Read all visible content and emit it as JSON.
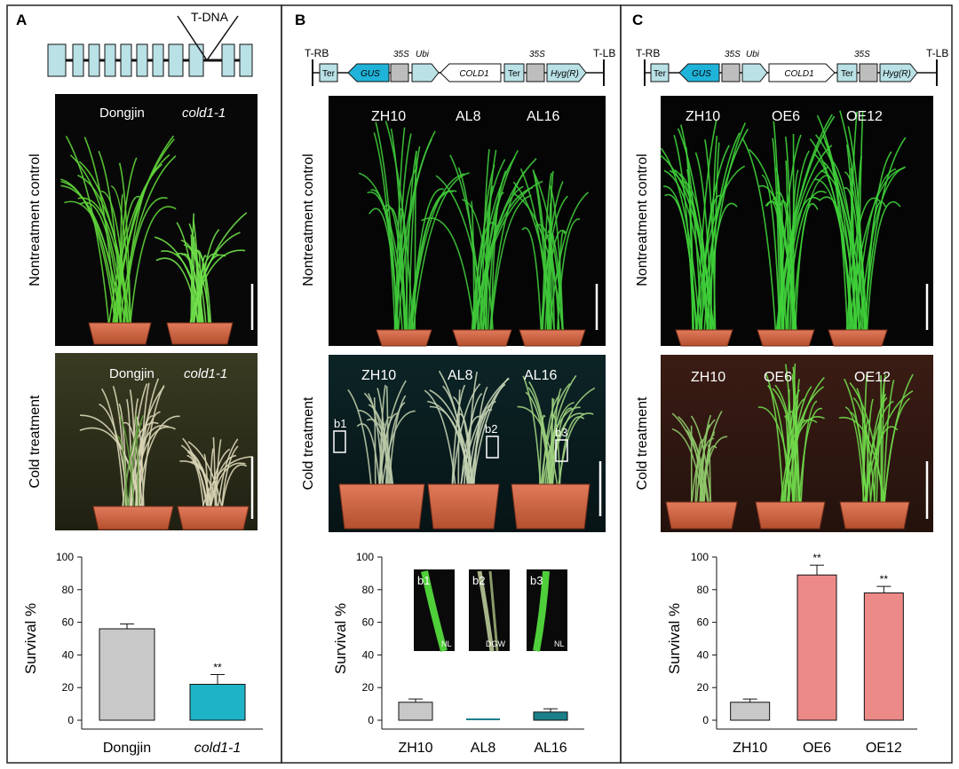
{
  "panels": [
    {
      "letter": "A",
      "construct_label": "T-DNA",
      "row_labels": [
        "Nontreatment control",
        "Cold treatment"
      ],
      "control_photo_labels": [
        "Dongjin",
        "cold1-1"
      ],
      "cold_photo_labels": [
        "Dongjin",
        "cold1-1"
      ]
    },
    {
      "letter": "B",
      "construct": {
        "left_border": "T-RB",
        "right_border": "T-LB",
        "parts": [
          "Ter",
          "GUS",
          "35S",
          "Ubi",
          "COLD1",
          "Ter",
          "35S",
          "Hyg(R)"
        ]
      },
      "row_labels": [
        "Nontreatment control",
        "Cold treatment"
      ],
      "control_photo_labels": [
        "ZH10",
        "AL8",
        "AL16"
      ],
      "cold_photo_labels": [
        "ZH10",
        "AL8",
        "AL16"
      ],
      "box_labels": [
        "b1",
        "b2",
        "b3"
      ],
      "inset_labels": [
        "b1",
        "b2",
        "b3"
      ],
      "inset_tags": [
        "NL",
        "DGW",
        "NL"
      ]
    },
    {
      "letter": "C",
      "construct": {
        "left_border": "T-RB",
        "right_border": "T-LB",
        "parts": [
          "Ter",
          "GUS",
          "35S",
          "Ubi",
          "COLD1",
          "Ter",
          "35S",
          "Hyg(R)"
        ]
      },
      "row_labels": [
        "Nontreatment control",
        "Cold treatment"
      ],
      "control_photo_labels": [
        "ZH10",
        "OE6",
        "OE12"
      ],
      "cold_photo_labels": [
        "ZH10",
        "OE6",
        "OE12"
      ]
    }
  ],
  "colors": {
    "wt_bar": "#c8c8c8",
    "mutant_bar": "#1fb3c8",
    "antisense_bar": "#1b7f8a",
    "oe_bar": "#ec8a88",
    "exon": "#b9e1e6",
    "gus": "#1fb3d9",
    "promoter": "#bdbdbd"
  },
  "chart_data": [
    {
      "type": "bar",
      "categories": [
        "Dongjin",
        "cold1-1"
      ],
      "values": [
        56,
        22
      ],
      "errors": [
        3,
        6
      ],
      "significance": [
        "",
        "**"
      ],
      "ylabel": "Survival %",
      "ylim": [
        0,
        100
      ],
      "yticks": [
        0,
        20,
        40,
        60,
        80,
        100
      ]
    },
    {
      "type": "bar",
      "categories": [
        "ZH10",
        "AL8",
        "AL16"
      ],
      "values": [
        11,
        0,
        5
      ],
      "errors": [
        2,
        0,
        2
      ],
      "significance": [
        "",
        "",
        ""
      ],
      "ylabel": "Survival %",
      "ylim": [
        0,
        100
      ],
      "yticks": [
        0,
        20,
        40,
        60,
        80,
        100
      ]
    },
    {
      "type": "bar",
      "categories": [
        "ZH10",
        "OE6",
        "OE12"
      ],
      "values": [
        11,
        89,
        78
      ],
      "errors": [
        2,
        6,
        4
      ],
      "significance": [
        "",
        "**",
        "**"
      ],
      "ylabel": "Survival %",
      "ylim": [
        0,
        100
      ],
      "yticks": [
        0,
        20,
        40,
        60,
        80,
        100
      ]
    }
  ]
}
